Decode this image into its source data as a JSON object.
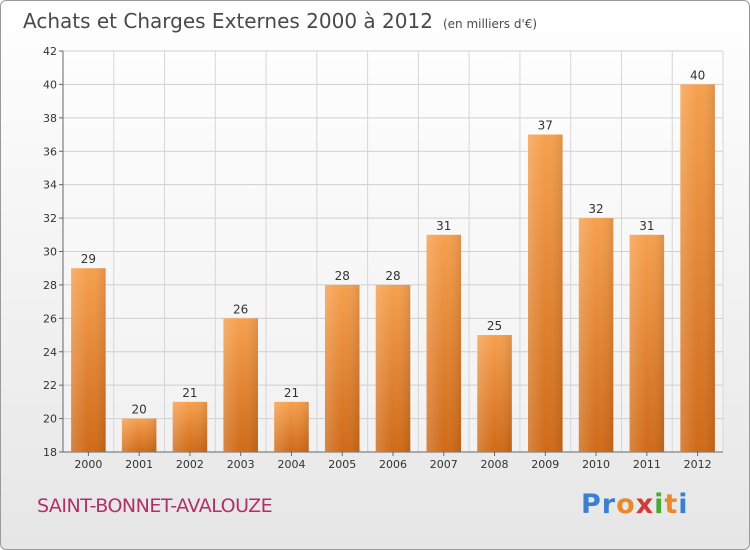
{
  "header": {
    "title": "Achats et Charges Externes 2000 à 2012",
    "unit": "(en milliers d'€)"
  },
  "footer": {
    "town": "SAINT-BONNET-AVALOUZE",
    "logo_letters": [
      {
        "char": "P",
        "color": "#3a7fd0"
      },
      {
        "char": "r",
        "color": "#3a7fd0"
      },
      {
        "char": "o",
        "color": "#e8892a"
      },
      {
        "char": "x",
        "color": "#d03a3a"
      },
      {
        "char": "i",
        "color": "#4aa83a"
      },
      {
        "char": "t",
        "color": "#e8892a"
      },
      {
        "char": "i",
        "color": "#3a7fd0"
      }
    ]
  },
  "chart_data": {
    "type": "bar",
    "categories": [
      "2000",
      "2001",
      "2002",
      "2003",
      "2004",
      "2005",
      "2006",
      "2007",
      "2008",
      "2009",
      "2010",
      "2011",
      "2012"
    ],
    "values": [
      29,
      20,
      21,
      26,
      21,
      28,
      28,
      31,
      25,
      37,
      32,
      31,
      40
    ],
    "ylim": [
      18,
      42
    ],
    "yticks": [
      18,
      20,
      22,
      24,
      26,
      28,
      30,
      32,
      34,
      36,
      38,
      40,
      42
    ],
    "grid": true,
    "bar_color_top": "#f6a04e",
    "bar_color_bottom": "#cf6a18"
  }
}
